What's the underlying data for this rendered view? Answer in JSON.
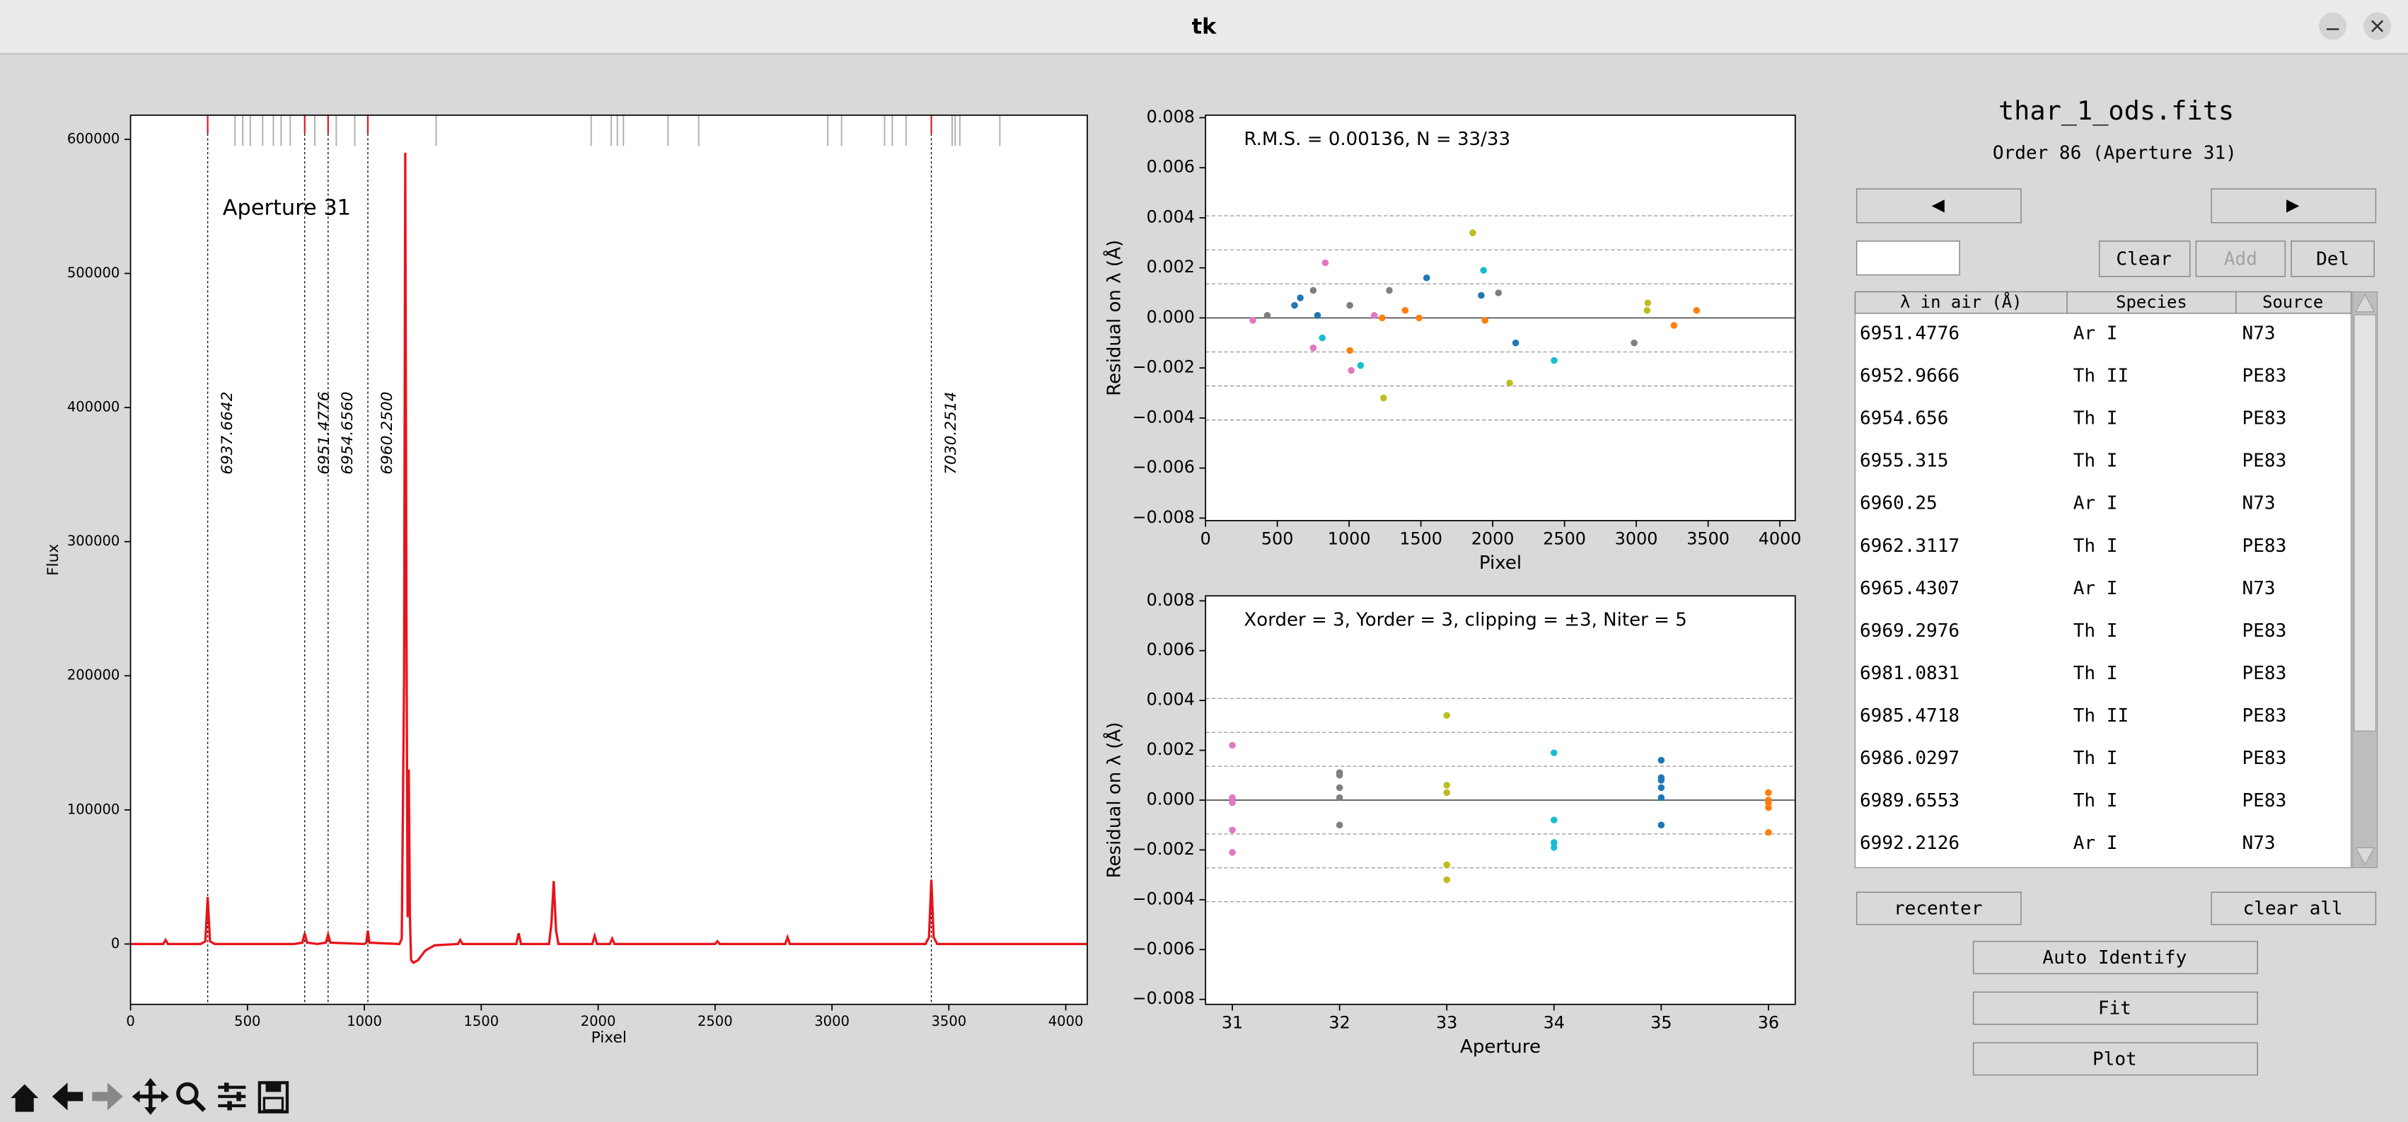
{
  "window": {
    "title": "tk"
  },
  "chart_data": [
    {
      "type": "line",
      "title": "Aperture 31",
      "x_label": "Pixel",
      "y_label": "Flux",
      "color": "#e8131b",
      "xlim": [
        0,
        4092
      ],
      "ylim": [
        -45000,
        618000
      ],
      "xticks": [
        0,
        500,
        1000,
        1500,
        2000,
        2500,
        3000,
        3500,
        4000
      ],
      "yticks": [
        0,
        100000,
        200000,
        300000,
        400000,
        500000,
        600000
      ],
      "x": [
        0,
        100,
        140,
        150,
        160,
        300,
        320,
        330,
        340,
        360,
        700,
        735,
        745,
        755,
        800,
        835,
        845,
        855,
        1000,
        1008,
        1015,
        1022,
        1150,
        1160,
        1170,
        1175,
        1180,
        1185,
        1190,
        1195,
        1200,
        1210,
        1230,
        1260,
        1300,
        1400,
        1410,
        1420,
        1650,
        1660,
        1670,
        1790,
        1800,
        1810,
        1820,
        1830,
        1975,
        1985,
        1995,
        2050,
        2060,
        2070,
        2500,
        2510,
        2520,
        2800,
        2810,
        2820,
        3400,
        3415,
        3425,
        3435,
        3450,
        4092
      ],
      "values": [
        0,
        0,
        0,
        3000,
        0,
        0,
        2000,
        35000,
        2000,
        0,
        0,
        1000,
        8000,
        1000,
        0,
        1000,
        7000,
        1000,
        0,
        1000,
        10000,
        1000,
        0,
        4000,
        200000,
        590000,
        250000,
        20000,
        130000,
        20000,
        -12000,
        -14000,
        -12000,
        -5000,
        -1000,
        0,
        3000,
        0,
        0,
        8000,
        0,
        0,
        15000,
        47000,
        10000,
        0,
        0,
        6000,
        0,
        0,
        4000,
        0,
        0,
        2000,
        0,
        0,
        5000,
        0,
        0,
        5000,
        48000,
        5000,
        0,
        0
      ],
      "line_ids": {
        "x": [
          330,
          745,
          845,
          1015,
          3425
        ],
        "labels": [
          "6937.6642",
          "6951.4776",
          "6954.6560",
          "6960.2500",
          "7030.2514"
        ],
        "color": "#e8131b"
      },
      "catalog_lines": {
        "x": [
          447,
          480,
          512,
          565,
          611,
          644,
          683,
          788,
          880,
          959,
          1307,
          1970,
          2056,
          2082,
          2108,
          2299,
          2430,
          2982,
          3041,
          3225,
          3258,
          3317,
          3514,
          3527,
          3547,
          3718
        ],
        "color": "#b0b0b0"
      }
    },
    {
      "type": "scatter",
      "annotation": "R.M.S. = 0.00136, N = 33/33",
      "x_label": "Pixel",
      "y_label": "Residual on λ (Å)",
      "xlim": [
        0,
        4107
      ],
      "ylim": [
        -0.0081,
        0.0081
      ],
      "xticks": [
        0,
        500,
        1000,
        1500,
        2000,
        2500,
        3000,
        3500,
        4000
      ],
      "yticks": [
        0.008,
        0.006,
        0.004,
        0.002,
        {
          "value": 0,
          "label": "0.000"
        },
        {
          "value": -0.002,
          "label": "−0.002"
        },
        {
          "value": -0.004,
          "label": "−0.004"
        },
        {
          "value": -0.006,
          "label": "−0.006"
        },
        {
          "value": -0.008,
          "label": "−0.008"
        }
      ],
      "sigma_lines": [
        0.00408,
        0.00272,
        0.00136,
        -0.00136,
        -0.00272,
        -0.00408
      ],
      "series": [
        {
          "color": "#e377c2",
          "x": [
            330,
            834,
            750,
            1015,
            1175
          ],
          "values": [
            -0.0001,
            0.0022,
            -0.0012,
            -0.0021,
            0.0001
          ]
        },
        {
          "color": "#7f7f7f",
          "x": [
            430,
            750,
            1005,
            1280,
            2040,
            2985
          ],
          "values": [
            0.0001,
            0.0011,
            0.0005,
            0.0011,
            0.001,
            -0.001
          ]
        },
        {
          "color": "#bcbd22",
          "x": [
            1861,
            1240,
            2118,
            3080,
            3075
          ],
          "values": [
            0.0034,
            -0.0032,
            -0.0026,
            0.0006,
            0.0003
          ]
        },
        {
          "color": "#17becf",
          "x": [
            813,
            1080,
            1936,
            2428
          ],
          "values": [
            -0.0008,
            -0.0019,
            0.0019,
            -0.0017
          ]
        },
        {
          "color": "#1f77b4",
          "x": [
            620,
            660,
            780,
            1540,
            1920,
            2160
          ],
          "values": [
            0.0005,
            0.0008,
            0.0001,
            0.0016,
            0.0009,
            -0.001
          ]
        },
        {
          "color": "#ff7f0e",
          "x": [
            1005,
            1230,
            1390,
            1487,
            1946,
            3262,
            3420
          ],
          "values": [
            -0.0013,
            0,
            0.0003,
            0,
            -0.0001,
            -0.0003,
            0.0003
          ]
        }
      ]
    },
    {
      "type": "scatter",
      "annotation": "Xorder = 3, Yorder = 3, clipping = ±3, Niter = 5",
      "x_label": "Aperture",
      "y_label": "Residual on λ (Å)",
      "xlim": [
        30.75,
        36.25
      ],
      "ylim": [
        -0.0082,
        0.0082
      ],
      "xticks": [
        31,
        32,
        33,
        34,
        35,
        36
      ],
      "yticks": [
        0.008,
        0.006,
        0.004,
        0.002,
        {
          "value": 0,
          "label": "0.000"
        },
        {
          "value": -0.002,
          "label": "−0.002"
        },
        {
          "value": -0.004,
          "label": "−0.004"
        },
        {
          "value": -0.006,
          "label": "−0.006"
        },
        {
          "value": -0.008,
          "label": "−0.008"
        }
      ],
      "sigma_lines": [
        0.00408,
        0.00272,
        0.00136,
        -0.00136,
        -0.00272,
        -0.00408
      ],
      "series": [
        {
          "color": "#e377c2",
          "x": [
            31,
            31,
            31,
            31,
            31
          ],
          "values": [
            -0.0001,
            0.0022,
            -0.0012,
            -0.0021,
            0.0001
          ]
        },
        {
          "color": "#7f7f7f",
          "x": [
            32,
            32,
            32,
            32,
            32,
            32
          ],
          "values": [
            0.0001,
            0.0011,
            0.0005,
            0.0011,
            0.001,
            -0.001
          ]
        },
        {
          "color": "#bcbd22",
          "x": [
            33,
            33,
            33,
            33,
            33
          ],
          "values": [
            0.0034,
            -0.0032,
            -0.0026,
            0.0006,
            0.0003
          ]
        },
        {
          "color": "#17becf",
          "x": [
            34,
            34,
            34,
            34
          ],
          "values": [
            -0.0008,
            -0.0019,
            0.0019,
            -0.0017
          ]
        },
        {
          "color": "#1f77b4",
          "x": [
            35,
            35,
            35,
            35,
            35,
            35
          ],
          "values": [
            0.0005,
            0.0008,
            0.0001,
            0.0016,
            0.0009,
            -0.001
          ]
        },
        {
          "color": "#ff7f0e",
          "x": [
            36,
            36,
            36,
            36,
            36,
            36,
            36
          ],
          "values": [
            -0.0013,
            0,
            0.0003,
            0,
            -0.0001,
            -0.0003,
            0.0003
          ]
        }
      ]
    }
  ],
  "panel": {
    "file": "thar_1_ods.fits",
    "order": "Order 86 (Aperture 31)",
    "buttons": {
      "prev": "◀",
      "next": "▶",
      "clear": "Clear",
      "add": "Add",
      "del": "Del",
      "recenter": "recenter",
      "clear_all": "clear all",
      "auto_identify": "Auto Identify",
      "fit": "Fit",
      "plot": "Plot"
    },
    "table": {
      "headers": [
        "λ in air (Å)",
        "Species",
        "Source"
      ],
      "rows": [
        [
          "6951.4776",
          "Ar I",
          "N73"
        ],
        [
          "6952.9666",
          "Th II",
          "PE83"
        ],
        [
          "6954.656",
          "Th I",
          "PE83"
        ],
        [
          "6955.315",
          "Th I",
          "PE83"
        ],
        [
          "6960.25",
          "Ar I",
          "N73"
        ],
        [
          "6962.3117",
          "Th I",
          "PE83"
        ],
        [
          "6965.4307",
          "Ar I",
          "N73"
        ],
        [
          "6969.2976",
          "Th I",
          "PE83"
        ],
        [
          "6981.0831",
          "Th I",
          "PE83"
        ],
        [
          "6985.4718",
          "Th II",
          "PE83"
        ],
        [
          "6986.0297",
          "Th I",
          "PE83"
        ],
        [
          "6989.6553",
          "Th I",
          "PE83"
        ],
        [
          "6992.2126",
          "Ar I",
          "N73"
        ]
      ]
    }
  }
}
